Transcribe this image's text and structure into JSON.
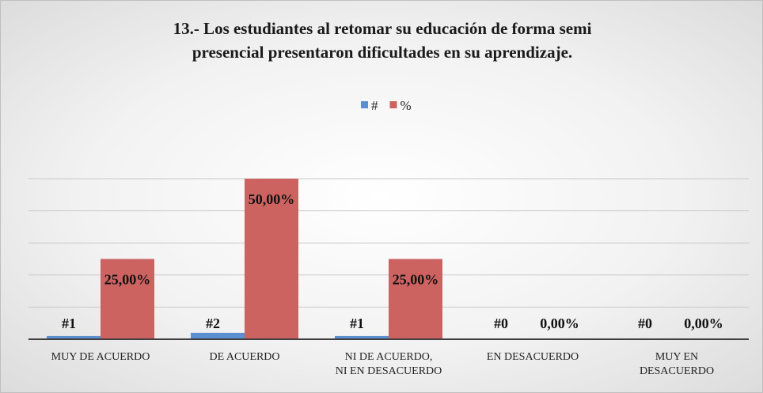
{
  "chart_data": {
    "type": "bar",
    "title": "13.- Los estudiantes al retomar su educación de forma semi\npresencial presentaron dificultades en su aprendizaje.",
    "categories": [
      "MUY DE ACUERDO",
      "DE ACUERDO",
      "NI DE ACUERDO,\nNI EN DESACUERDO",
      "EN DESACUERDO",
      "MUY EN\nDESACUERDO"
    ],
    "series": [
      {
        "name": "#",
        "color": "#5b8fd0",
        "values": [
          1,
          2,
          1,
          0,
          0
        ],
        "value_labels": [
          "#1",
          "#2",
          "#1",
          "#0",
          "#0"
        ]
      },
      {
        "name": "%",
        "color": "#cc6360",
        "values": [
          25,
          50,
          25,
          0,
          0
        ],
        "value_labels": [
          "25,00%",
          "50,00%",
          "25,00%",
          "0,00%",
          "0,00%"
        ]
      }
    ],
    "ylim": [
      0,
      50
    ],
    "yticks": [
      0,
      10,
      20,
      30,
      40,
      50
    ],
    "grid": true,
    "legend": "top"
  }
}
